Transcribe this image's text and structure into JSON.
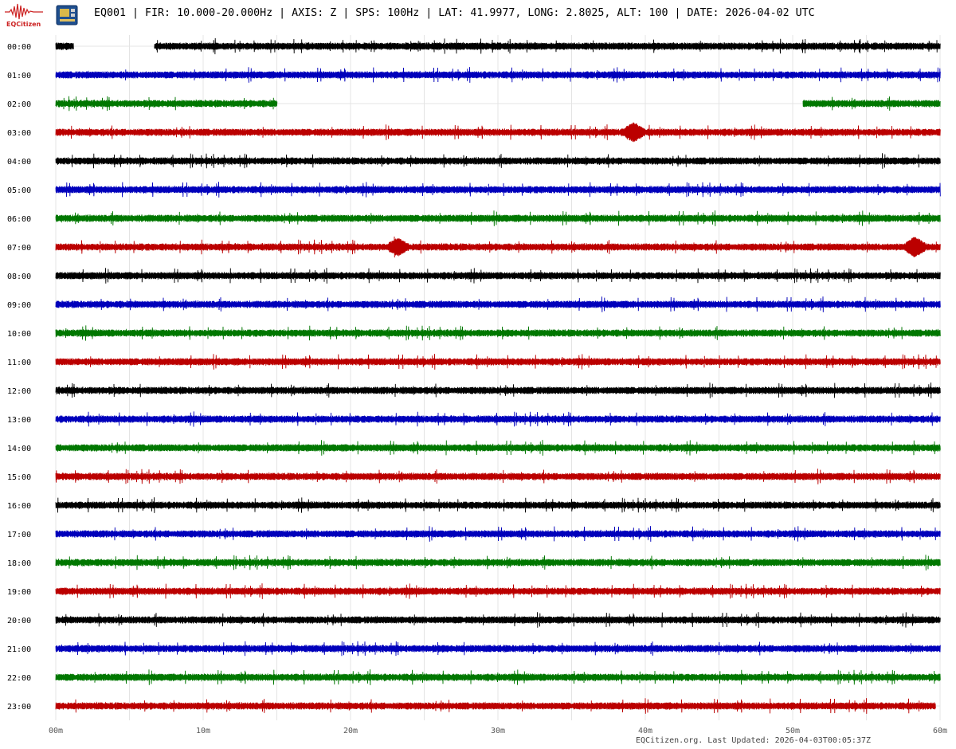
{
  "header": {
    "title": "EQ001 | FIR: 10.000-20.000Hz | AXIS: Z | SPS: 100Hz | LAT: 41.9977, LONG: 2.8025, ALT: 100 | DATE: 2026-04-02 UTC",
    "logo_text": "EQCitizen"
  },
  "footer": {
    "text": "EQCitizen.org. Last Updated: 2026-04-03T00:05:37Z"
  },
  "icons": [
    "seismograph-logo-icon",
    "sensor-board-icon"
  ],
  "chart_data": {
    "type": "line",
    "subtype": "helicorder",
    "row_labels": [
      "00:00",
      "01:00",
      "02:00",
      "03:00",
      "04:00",
      "05:00",
      "06:00",
      "07:00",
      "08:00",
      "09:00",
      "10:00",
      "11:00",
      "12:00",
      "13:00",
      "14:00",
      "15:00",
      "16:00",
      "17:00",
      "18:00",
      "19:00",
      "20:00",
      "21:00",
      "22:00",
      "23:00"
    ],
    "x_ticks": [
      "00m",
      "10m",
      "20m",
      "30m",
      "40m",
      "50m",
      "60m"
    ],
    "x_tick_values": [
      0,
      10,
      20,
      30,
      40,
      50,
      60
    ],
    "x_range_minutes": [
      0,
      60
    ],
    "x_minor_step_minutes": 5,
    "grid": true,
    "trace_colors": [
      "#000000",
      "#0000bb",
      "#007700",
      "#bb0000"
    ],
    "rows": [
      {
        "hour": "00:00",
        "segments": [
          [
            0,
            1.2
          ],
          [
            6.7,
            60
          ]
        ],
        "events": []
      },
      {
        "hour": "01:00",
        "segments": [
          [
            0,
            60
          ]
        ],
        "events": []
      },
      {
        "hour": "02:00",
        "segments": [
          [
            0,
            15
          ],
          [
            50.7,
            60
          ]
        ],
        "events": []
      },
      {
        "hour": "03:00",
        "segments": [
          [
            0,
            60
          ]
        ],
        "events": [
          [
            39.2,
            2.2
          ]
        ]
      },
      {
        "hour": "04:00",
        "segments": [
          [
            0,
            60
          ]
        ],
        "events": []
      },
      {
        "hour": "05:00",
        "segments": [
          [
            0,
            60
          ]
        ],
        "events": []
      },
      {
        "hour": "06:00",
        "segments": [
          [
            0,
            60
          ]
        ],
        "events": []
      },
      {
        "hour": "07:00",
        "segments": [
          [
            0,
            60
          ]
        ],
        "events": [
          [
            23.2,
            1.8
          ],
          [
            58.3,
            2.3
          ]
        ]
      },
      {
        "hour": "08:00",
        "segments": [
          [
            0,
            60
          ]
        ],
        "events": []
      },
      {
        "hour": "09:00",
        "segments": [
          [
            0,
            60
          ]
        ],
        "events": []
      },
      {
        "hour": "10:00",
        "segments": [
          [
            0,
            60
          ]
        ],
        "events": []
      },
      {
        "hour": "11:00",
        "segments": [
          [
            0,
            60
          ]
        ],
        "events": []
      },
      {
        "hour": "12:00",
        "segments": [
          [
            0,
            60
          ]
        ],
        "events": []
      },
      {
        "hour": "13:00",
        "segments": [
          [
            0,
            60
          ]
        ],
        "events": []
      },
      {
        "hour": "14:00",
        "segments": [
          [
            0,
            60
          ]
        ],
        "events": []
      },
      {
        "hour": "15:00",
        "segments": [
          [
            0,
            60
          ]
        ],
        "events": []
      },
      {
        "hour": "16:00",
        "segments": [
          [
            0,
            60
          ]
        ],
        "events": []
      },
      {
        "hour": "17:00",
        "segments": [
          [
            0,
            60
          ]
        ],
        "events": []
      },
      {
        "hour": "18:00",
        "segments": [
          [
            0,
            60
          ]
        ],
        "events": []
      },
      {
        "hour": "19:00",
        "segments": [
          [
            0,
            60
          ]
        ],
        "events": []
      },
      {
        "hour": "20:00",
        "segments": [
          [
            0,
            60
          ]
        ],
        "events": []
      },
      {
        "hour": "21:00",
        "segments": [
          [
            0,
            60
          ]
        ],
        "events": []
      },
      {
        "hour": "22:00",
        "segments": [
          [
            0,
            60
          ]
        ],
        "events": []
      },
      {
        "hour": "23:00",
        "segments": [
          [
            0,
            59.7
          ]
        ],
        "events": []
      }
    ]
  }
}
